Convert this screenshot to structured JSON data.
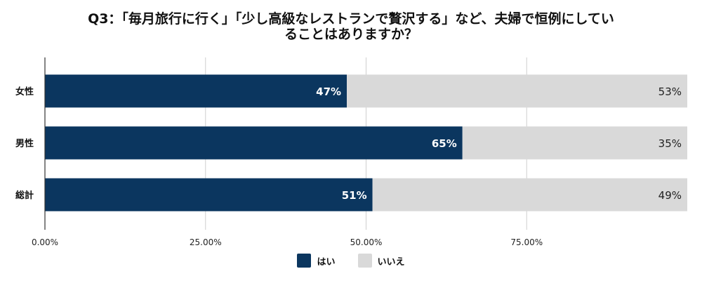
{
  "chart_data": {
    "type": "bar",
    "orientation": "horizontal",
    "stacked": true,
    "title_lines": [
      "Q3：「毎月旅行に行く」「少し高級なレストランで贅沢する」など、夫婦で恒例にしてい",
      "ることはありますか？"
    ],
    "categories": [
      "女性",
      "男性",
      "総計"
    ],
    "series": [
      {
        "name": "はい",
        "values": [
          47,
          65,
          51
        ],
        "color": "#0b365f",
        "labels": [
          "47%",
          "65%",
          "51%"
        ]
      },
      {
        "name": "いいえ",
        "values": [
          53,
          35,
          49
        ],
        "color": "#d9d9d9",
        "labels": [
          "53%",
          "35%",
          "49%"
        ]
      }
    ],
    "x_ticks": [
      0,
      25,
      50,
      75
    ],
    "x_tick_labels": [
      "0.00%",
      "25.00%",
      "50.00%",
      "75.00%"
    ],
    "xlim": [
      0,
      100
    ],
    "grid": true,
    "legend_position": "bottom"
  }
}
